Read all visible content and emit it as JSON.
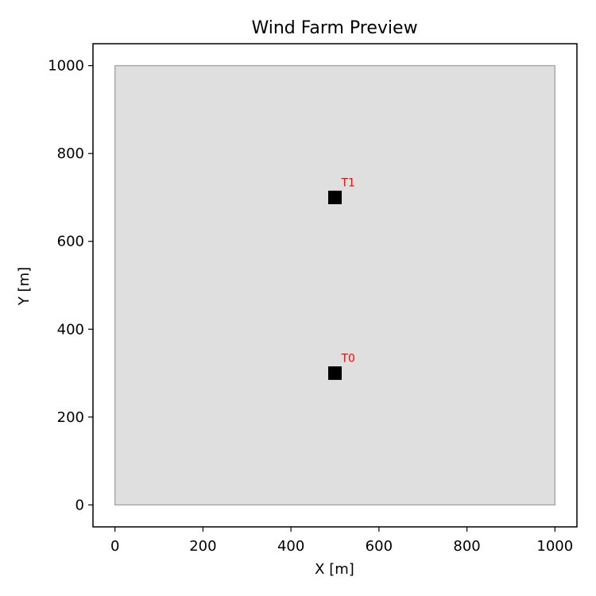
{
  "chart_data": {
    "type": "scatter",
    "title": "Wind Farm Preview",
    "xlabel": "X [m]",
    "ylabel": "Y [m]",
    "xlim": [
      -50,
      1050
    ],
    "ylim": [
      -50,
      1050
    ],
    "xticks": [
      0,
      200,
      400,
      600,
      800,
      1000
    ],
    "yticks": [
      0,
      200,
      400,
      600,
      800,
      1000
    ],
    "grid": false,
    "boundary": {
      "x": [
        0,
        1000
      ],
      "y": [
        0,
        1000
      ],
      "fill": "#dfdfdf",
      "stroke": "#aaaaaa"
    },
    "turbines": [
      {
        "label": "T0",
        "x": 500,
        "y": 300
      },
      {
        "label": "T1",
        "x": 500,
        "y": 700
      }
    ],
    "marker_color": "#000000",
    "label_color": "#ff0000"
  }
}
